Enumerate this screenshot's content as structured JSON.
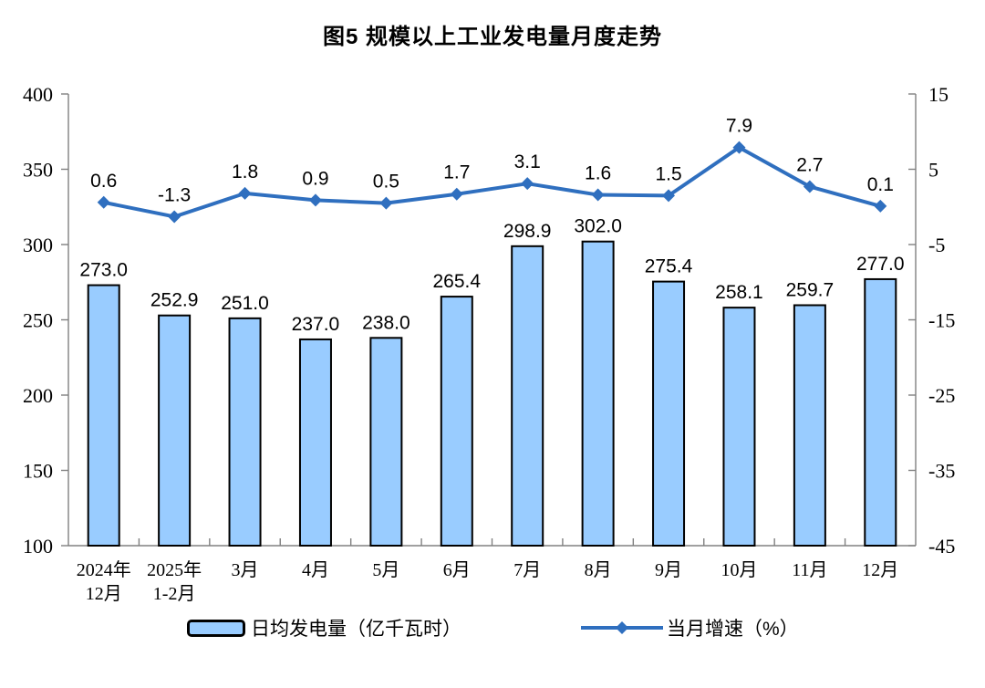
{
  "colors": {
    "bar_fill": "#99CCFF",
    "bar_border": "#000000",
    "line": "#2F6FBF",
    "axis": "#808080",
    "text": "#000000",
    "background": "#FFFFFF"
  },
  "chart_data": {
    "type": "bar+line combo",
    "title": "图5  规模以上工业发电量月度走势",
    "categories": [
      [
        "2024年",
        "12月"
      ],
      [
        "2025年",
        "1-2月"
      ],
      [
        "3月"
      ],
      [
        "4月"
      ],
      [
        "5月"
      ],
      [
        "6月"
      ],
      [
        "7月"
      ],
      [
        "8月"
      ],
      [
        "9月"
      ],
      [
        "10月"
      ],
      [
        "11月"
      ],
      [
        "12月"
      ]
    ],
    "series": [
      {
        "name": "日均发电量（亿千瓦时）",
        "type": "bar",
        "axis": "left",
        "values": [
          273.0,
          252.9,
          251.0,
          237.0,
          238.0,
          265.4,
          298.9,
          302.0,
          275.4,
          258.1,
          259.7,
          277.0
        ]
      },
      {
        "name": "当月增速（%）",
        "type": "line",
        "axis": "right",
        "values": [
          0.6,
          -1.3,
          1.8,
          0.9,
          0.5,
          1.7,
          3.1,
          1.6,
          1.5,
          7.9,
          2.7,
          0.1
        ]
      }
    ],
    "left_axis": {
      "min": 100,
      "max": 400,
      "ticks": [
        400,
        350,
        300,
        250,
        200,
        150,
        100
      ]
    },
    "right_axis": {
      "min": -45,
      "max": 15,
      "ticks": [
        15,
        5,
        -5,
        -15,
        -25,
        -35,
        -45
      ]
    },
    "grid": false,
    "legend_position": "bottom",
    "data_labels": true
  }
}
